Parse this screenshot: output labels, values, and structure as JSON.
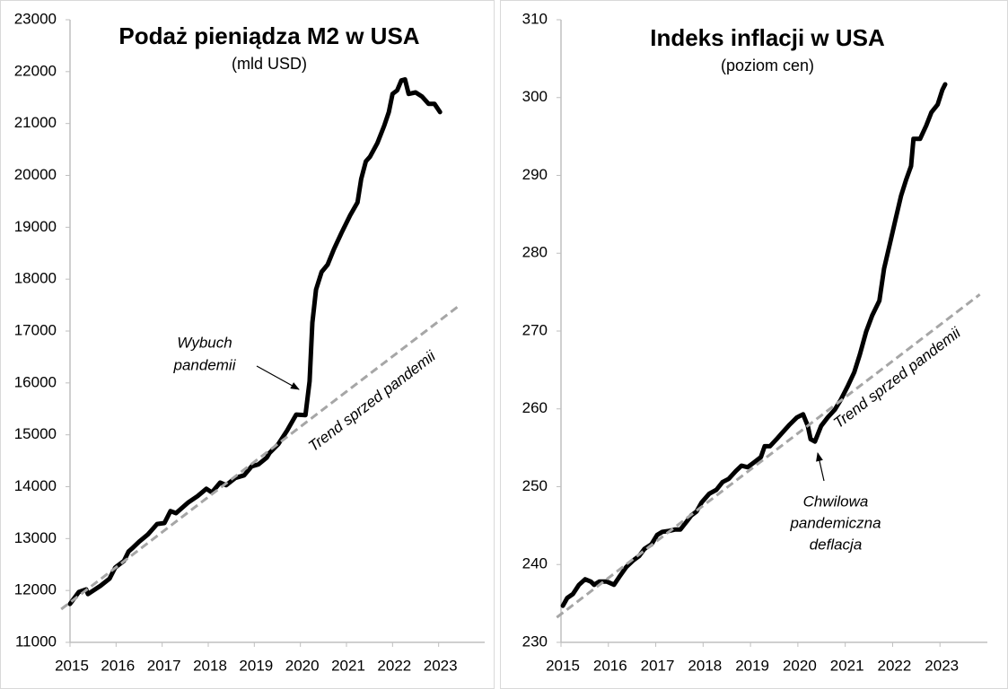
{
  "chart_data": [
    {
      "type": "line",
      "title": "Podaż pieniądza M2 w USA",
      "subtitle": "(mld USD)",
      "xlim": [
        2015,
        2024
      ],
      "xticks": [
        2015,
        2016,
        2017,
        2018,
        2019,
        2020,
        2021,
        2022,
        2023
      ],
      "ylim": [
        11000,
        23000
      ],
      "yticks": [
        11000,
        12000,
        13000,
        14000,
        15000,
        16000,
        17000,
        18000,
        19000,
        20000,
        21000,
        22000,
        23000
      ],
      "grid": false,
      "series": [
        {
          "color": "#000000",
          "x": [
            2015.0,
            2015.19,
            2015.35,
            2015.39,
            2015.66,
            2015.86,
            2015.98,
            2016.17,
            2016.27,
            2016.36,
            2016.5,
            2016.69,
            2016.89,
            2017.05,
            2017.18,
            2017.3,
            2017.57,
            2017.77,
            2017.96,
            2018.08,
            2018.26,
            2018.39,
            2018.59,
            2018.78,
            2018.94,
            2019.09,
            2019.27,
            2019.33,
            2019.52,
            2019.71,
            2019.91,
            2020.11,
            2020.2,
            2020.26,
            2020.34,
            2020.46,
            2020.59,
            2020.73,
            2020.89,
            2021.08,
            2021.24,
            2021.32,
            2021.42,
            2021.51,
            2021.67,
            2021.82,
            2021.92,
            2022.0,
            2022.1,
            2022.19,
            2022.27,
            2022.35,
            2022.5,
            2022.64,
            2022.78,
            2022.91,
            2023.03
          ],
          "values": [
            11740,
            11970,
            12020,
            11930,
            12090,
            12230,
            12440,
            12570,
            12750,
            12820,
            12940,
            13080,
            13280,
            13300,
            13530,
            13490,
            13700,
            13820,
            13960,
            13890,
            14080,
            14030,
            14170,
            14220,
            14390,
            14430,
            14560,
            14650,
            14820,
            15080,
            15390,
            15380,
            16030,
            17160,
            17800,
            18140,
            18280,
            18580,
            18890,
            19230,
            19480,
            19930,
            20270,
            20360,
            20620,
            20960,
            21220,
            21570,
            21640,
            21830,
            21850,
            21570,
            21600,
            21520,
            21380,
            21380,
            21220
          ]
        },
        {
          "name": "Trend sprzed pandemii",
          "color": "#a6a6a6",
          "dashed": true,
          "x": [
            2014.81,
            2023.46
          ],
          "values": [
            11640,
            17500
          ]
        }
      ],
      "annotations": [
        {
          "text": [
            "Wybuch",
            "pandemii"
          ]
        }
      ]
    },
    {
      "type": "line",
      "title": "Indeks inflacji w USA",
      "subtitle": "(poziom cen)",
      "xlim": [
        2015,
        2024
      ],
      "xticks": [
        2015,
        2016,
        2017,
        2018,
        2019,
        2020,
        2021,
        2022,
        2023
      ],
      "ylim": [
        230,
        310
      ],
      "yticks": [
        230,
        240,
        250,
        260,
        270,
        280,
        290,
        300,
        310
      ],
      "grid": false,
      "series": [
        {
          "color": "#000000",
          "x": [
            2015.04,
            2015.13,
            2015.25,
            2015.38,
            2015.51,
            2015.63,
            2015.7,
            2015.81,
            2015.97,
            2016.12,
            2016.23,
            2016.38,
            2016.52,
            2016.65,
            2016.76,
            2016.91,
            2017.03,
            2017.14,
            2017.27,
            2017.41,
            2017.52,
            2017.65,
            2017.75,
            2017.86,
            2017.97,
            2018.13,
            2018.28,
            2018.41,
            2018.54,
            2018.69,
            2018.81,
            2018.94,
            2019.07,
            2019.22,
            2019.3,
            2019.41,
            2019.55,
            2019.68,
            2019.83,
            2019.98,
            2020.11,
            2020.21,
            2020.27,
            2020.36,
            2020.49,
            2020.63,
            2020.78,
            2020.91,
            2021.06,
            2021.19,
            2021.31,
            2021.44,
            2021.57,
            2021.72,
            2021.82,
            2021.95,
            2022.06,
            2022.18,
            2022.29,
            2022.39,
            2022.44,
            2022.58,
            2022.71,
            2022.82,
            2022.95,
            2023.05,
            2023.11
          ],
          "values": [
            234.7,
            235.7,
            236.2,
            237.4,
            238.1,
            237.8,
            237.4,
            237.8,
            237.8,
            237.4,
            238.4,
            239.7,
            240.5,
            241.1,
            242.0,
            242.6,
            243.8,
            244.2,
            244.3,
            244.5,
            244.5,
            245.5,
            246.3,
            246.8,
            248.0,
            249.1,
            249.6,
            250.6,
            251.0,
            252.0,
            252.7,
            252.5,
            253.1,
            253.8,
            255.2,
            255.2,
            256.1,
            257.0,
            258.0,
            258.9,
            259.3,
            257.8,
            256.1,
            255.8,
            257.8,
            258.9,
            259.9,
            261.2,
            263.0,
            264.7,
            267.0,
            269.9,
            272.0,
            273.9,
            278.0,
            281.4,
            284.3,
            287.4,
            289.5,
            291.2,
            294.7,
            294.7,
            296.4,
            298.1,
            299.1,
            301.0,
            301.7
          ]
        },
        {
          "name": "Trend sprzed pandemii",
          "color": "#a6a6a6",
          "dashed": true,
          "x": [
            2014.91,
            2023.84
          ],
          "values": [
            233.2,
            274.7
          ]
        }
      ],
      "annotations": [
        {
          "text": [
            "Chwilowa",
            "pandemiczna",
            "deflacja"
          ]
        }
      ]
    }
  ]
}
